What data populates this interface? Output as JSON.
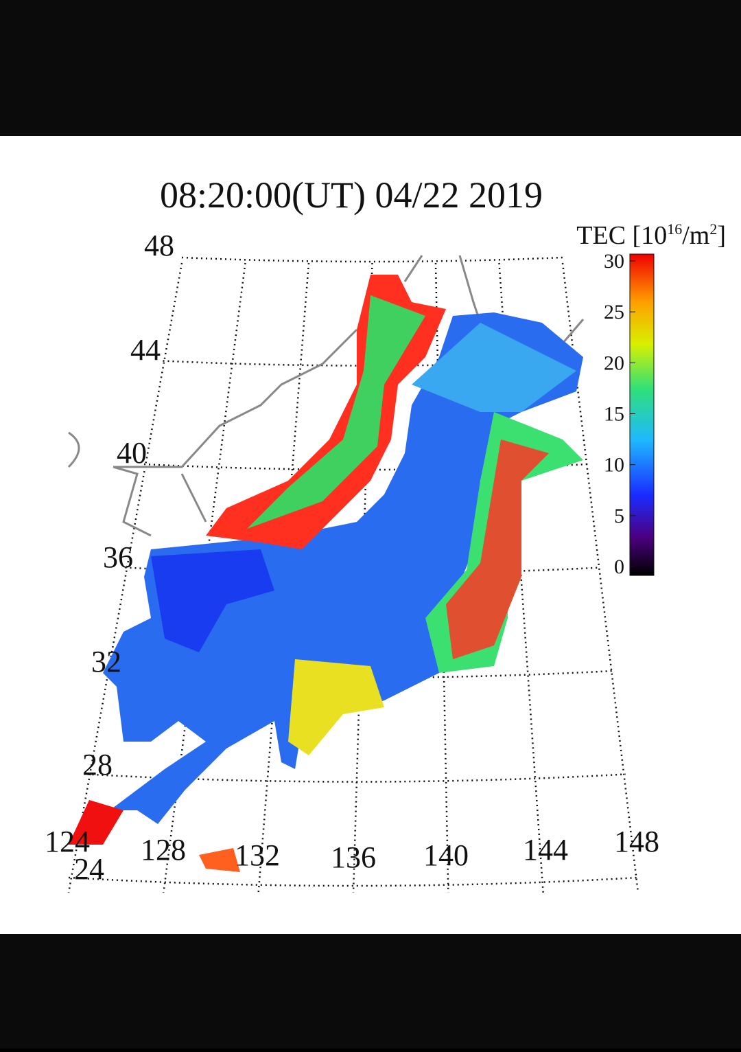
{
  "map": {
    "title": "08:20:00(UT)  04/22 2019",
    "colorbar": {
      "label": [
        "TEC [10",
        "16",
        "/m",
        "2",
        "]"
      ],
      "ticks": [
        30,
        25,
        20,
        15,
        10,
        5,
        0
      ]
    },
    "lat_labels": [
      "48",
      "44",
      "40",
      "36",
      "32",
      "28",
      "24"
    ],
    "lon_labels": [
      "124",
      "128",
      "132",
      "136",
      "140",
      "144",
      "148"
    ]
  }
}
